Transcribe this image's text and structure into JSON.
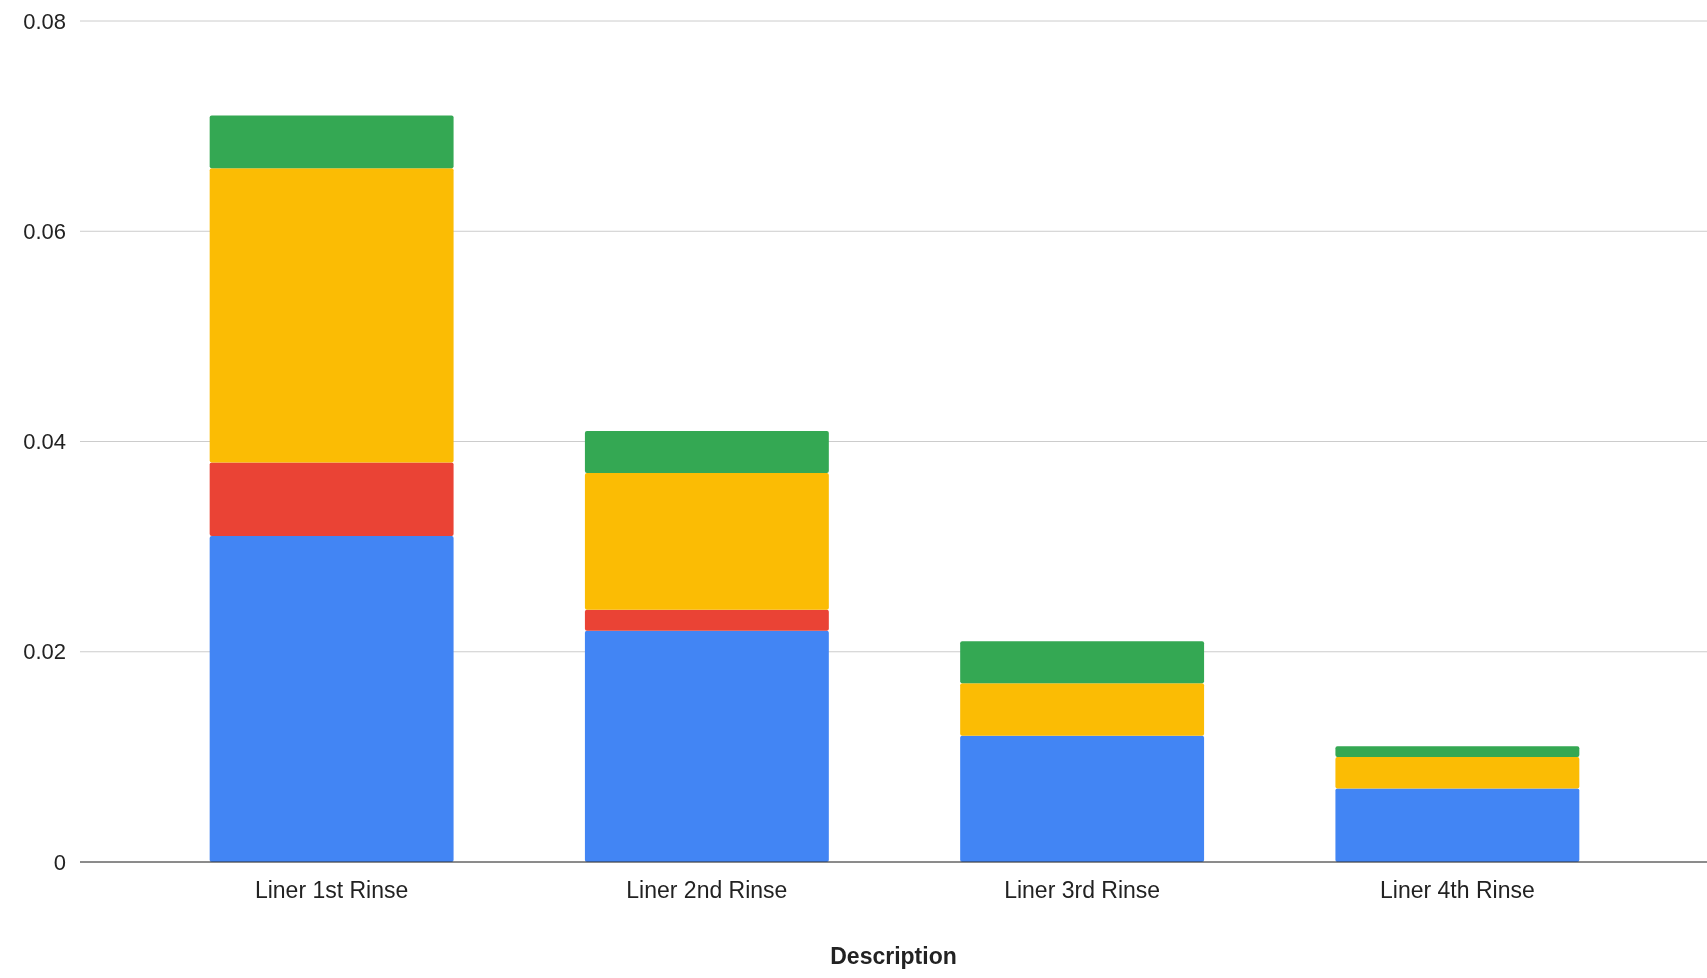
{
  "chart_data": {
    "type": "bar",
    "xlabel": "Description",
    "categories": [
      "Liner 1st Rinse",
      "Liner 2nd Rinse",
      "Liner 3rd Rinse",
      "Liner 4th Rinse"
    ],
    "stacked": true,
    "series": [
      {
        "color": "#4285f4",
        "values": [
          0.031,
          0.022,
          0.012,
          0.007
        ]
      },
      {
        "color": "#ea4335",
        "values": [
          0.007,
          0.002,
          0,
          0
        ]
      },
      {
        "color": "#fbbc04",
        "values": [
          0.028,
          0.013,
          0.005,
          0.003
        ]
      },
      {
        "color": "#34a853",
        "values": [
          0.005,
          0.004,
          0.004,
          0.001
        ]
      }
    ],
    "ylim": [
      0,
      0.08
    ],
    "yticks": [
      {
        "value": 0,
        "label": "0"
      },
      0.02,
      0.04,
      0.06,
      0.08
    ],
    "grid": "y"
  }
}
